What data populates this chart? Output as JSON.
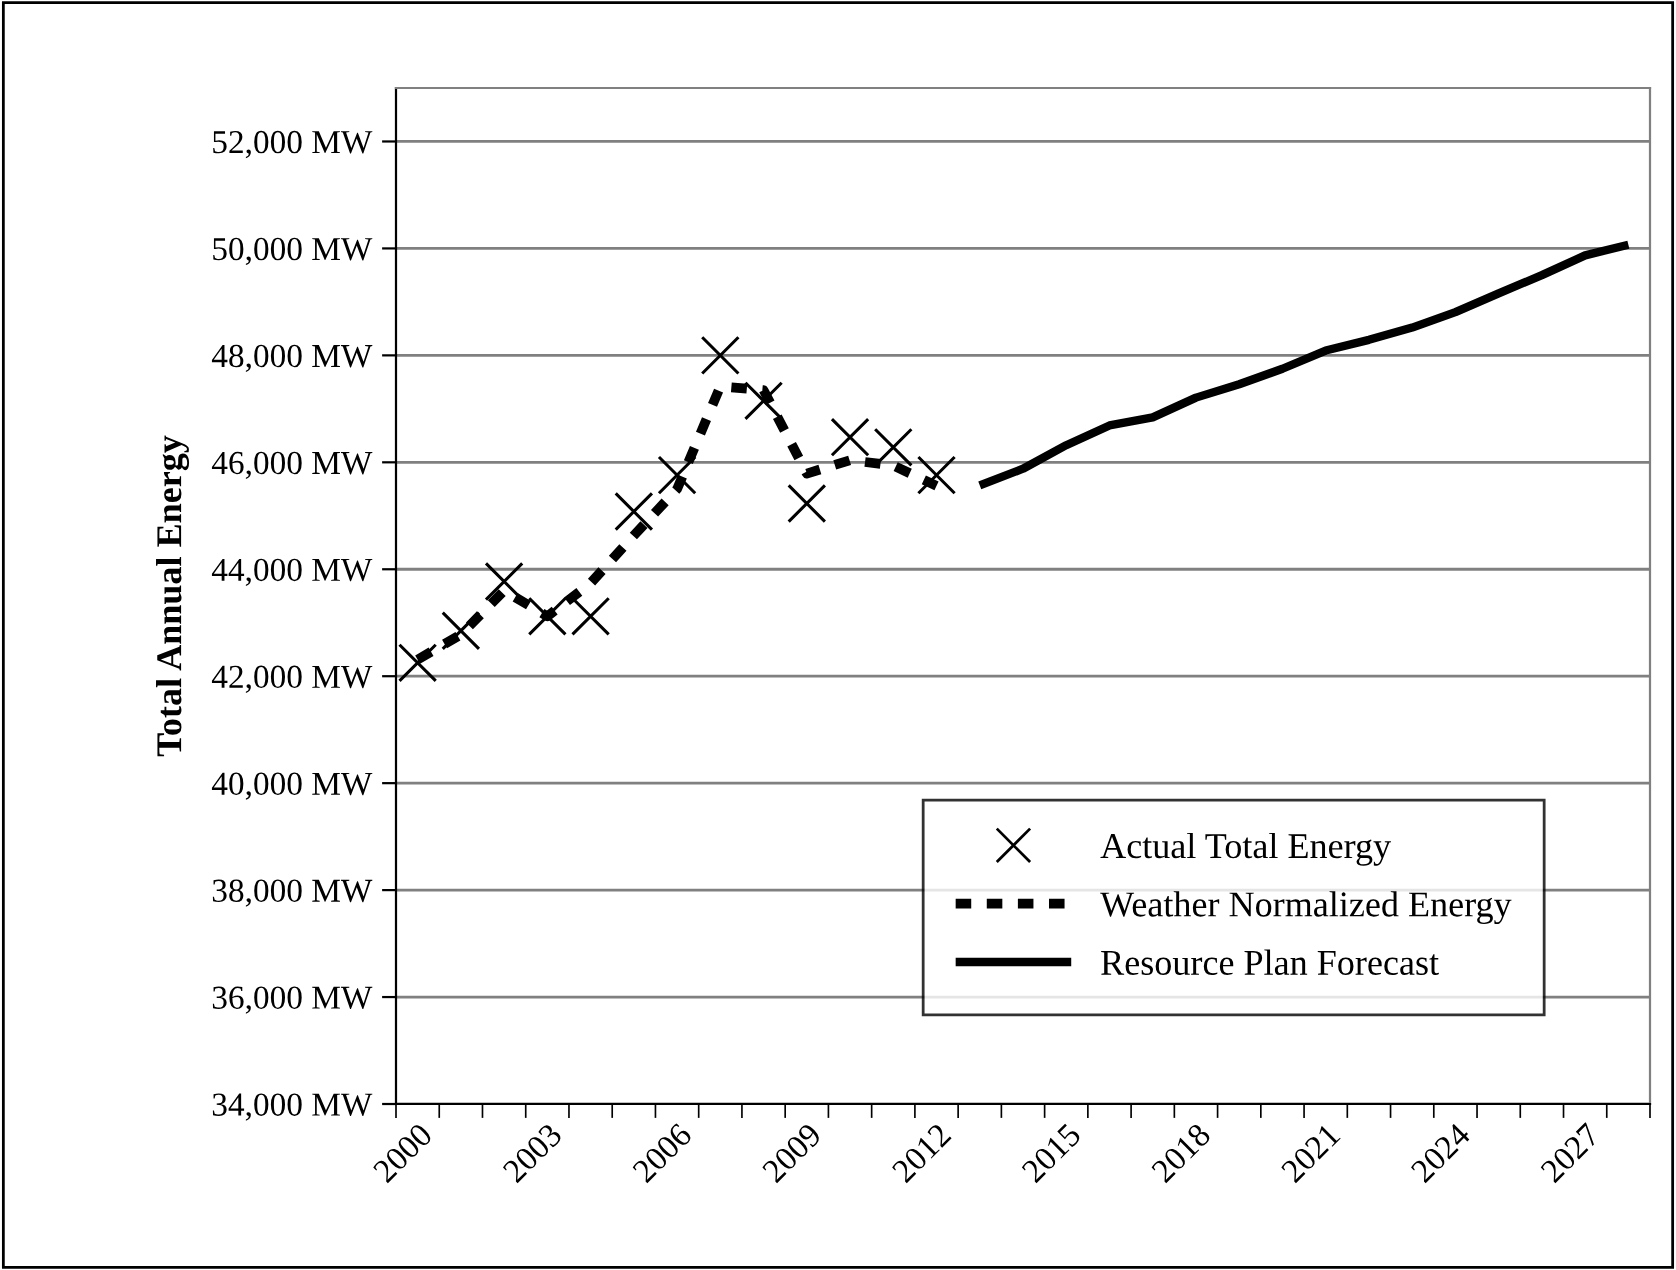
{
  "chart_data": {
    "type": "line",
    "ylabel": "Total Annual Energy",
    "categories": [
      "2000",
      null,
      null,
      "2003",
      null,
      null,
      "2006",
      null,
      null,
      "2009",
      null,
      null,
      "2012",
      null,
      null,
      "2015",
      null,
      null,
      "2018",
      null,
      null,
      "2021",
      null,
      null,
      "2024",
      null,
      null,
      "2027",
      null
    ],
    "series": [
      {
        "name": "Actual Total Energy",
        "type": "scatter",
        "marker": "cross",
        "color": "#000000",
        "values": [
          42250,
          42850,
          43770,
          43120,
          43120,
          45080,
          45760,
          48000,
          47150,
          45230,
          46470,
          46280,
          45760,
          null,
          null,
          null,
          null,
          null,
          null,
          null,
          null,
          null,
          null,
          null,
          null,
          null,
          null,
          null,
          null
        ]
      },
      {
        "name": "Weather Normalized Energy",
        "type": "line",
        "line_style": "dashed",
        "color": "#000000",
        "values": [
          42310,
          42780,
          43600,
          43120,
          43740,
          44630,
          45500,
          47420,
          47350,
          45790,
          46040,
          45940,
          45560,
          null,
          null,
          null,
          null,
          null,
          null,
          null,
          null,
          null,
          null,
          null,
          null,
          null,
          null,
          null,
          null
        ]
      },
      {
        "name": "Resource Plan Forecast",
        "type": "line",
        "line_style": "solid",
        "color": "#000000",
        "values": [
          null,
          null,
          null,
          null,
          null,
          null,
          null,
          null,
          null,
          null,
          null,
          null,
          null,
          45570,
          45880,
          46320,
          46690,
          46840,
          47210,
          47460,
          47750,
          48090,
          48290,
          48520,
          48810,
          49160,
          49500,
          49870,
          50070
        ]
      }
    ],
    "ylim": [
      34000,
      53000
    ],
    "yticks": [
      {
        "value": 34000,
        "label": "34,000 MW"
      },
      {
        "value": 36000,
        "label": "36,000 MW"
      },
      {
        "value": 38000,
        "label": "38,000 MW"
      },
      {
        "value": 40000,
        "label": "40,000 MW"
      },
      {
        "value": 42000,
        "label": "42,000 MW"
      },
      {
        "value": 44000,
        "label": "44,000 MW"
      },
      {
        "value": 46000,
        "label": "46,000 MW"
      },
      {
        "value": 48000,
        "label": "48,000 MW"
      },
      {
        "value": 50000,
        "label": "50,000 MW"
      },
      {
        "value": 52000,
        "label": "52,000 MW"
      }
    ],
    "grid": "y",
    "legend": "bottom right"
  }
}
